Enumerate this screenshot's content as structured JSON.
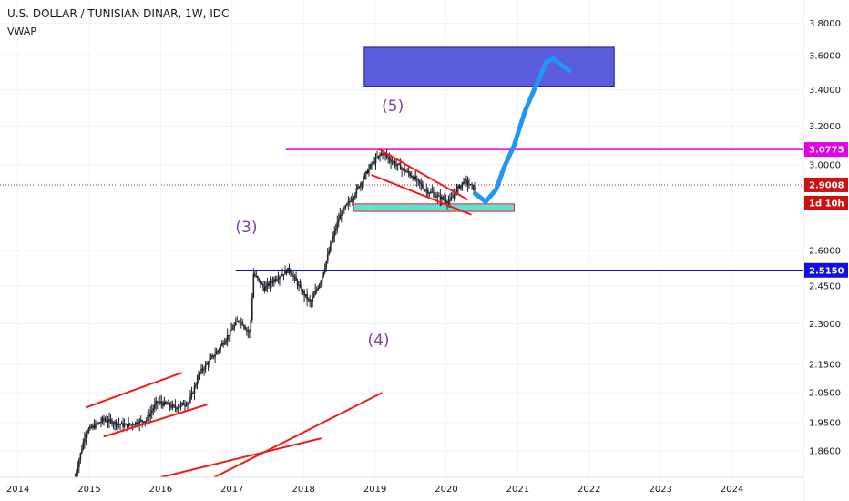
{
  "header": {
    "title": "U.S. DOLLAR / TUNISIAN DINAR, 1W, IDC",
    "indicator": "VWAP"
  },
  "colors": {
    "grid": "#f0f3fa",
    "axis_text": "#131722",
    "candle": "#1e222d",
    "projection": "#2196f3",
    "target_box_fill": "#3f3fd8",
    "support_box_fill": "#5ee2d6",
    "trendline": "#f41a1a",
    "resistance_line": "#e500e5",
    "support_line": "#1010e6",
    "current_price_line": "#d01010",
    "wave_label": "#7b3fa8"
  },
  "chart_data": {
    "type": "candlestick",
    "symbol": "U.S. DOLLAR / TUNISIAN DINAR",
    "interval": "1W",
    "source": "IDC",
    "x_tick_labels": [
      "2014",
      "2015",
      "2016",
      "2017",
      "2018",
      "2019",
      "2020",
      "2021",
      "2022",
      "2023",
      "2024"
    ],
    "y_tick_labels": [
      "3.8000",
      "3.6000",
      "3.4000",
      "3.2000",
      "3.0000",
      "2.6000",
      "2.4500",
      "2.3000",
      "2.1500",
      "2.0500",
      "1.9500",
      "1.8600"
    ],
    "xlim": [
      2013.75,
      2025.0
    ],
    "ylim": [
      1.78,
      3.95
    ],
    "price_path": [
      [
        2014.8,
        1.78
      ],
      [
        2014.95,
        1.92
      ],
      [
        2015.2,
        1.96
      ],
      [
        2015.5,
        1.94
      ],
      [
        2015.8,
        1.96
      ],
      [
        2015.95,
        2.02
      ],
      [
        2016.2,
        2.0
      ],
      [
        2016.4,
        2.02
      ],
      [
        2016.55,
        2.12
      ],
      [
        2016.8,
        2.2
      ],
      [
        2017.1,
        2.32
      ],
      [
        2017.25,
        2.26
      ],
      [
        2017.3,
        2.5
      ],
      [
        2017.45,
        2.44
      ],
      [
        2017.6,
        2.48
      ],
      [
        2017.8,
        2.52
      ],
      [
        2017.95,
        2.44
      ],
      [
        2018.1,
        2.38
      ],
      [
        2018.25,
        2.48
      ],
      [
        2018.5,
        2.75
      ],
      [
        2018.7,
        2.85
      ],
      [
        2018.95,
        3.0
      ],
      [
        2019.1,
        3.06
      ],
      [
        2019.3,
        3.0
      ],
      [
        2019.5,
        2.95
      ],
      [
        2019.7,
        2.88
      ],
      [
        2019.9,
        2.84
      ],
      [
        2020.05,
        2.82
      ],
      [
        2020.15,
        2.88
      ],
      [
        2020.25,
        2.92
      ],
      [
        2020.4,
        2.88
      ]
    ],
    "projection_path": [
      [
        2020.4,
        2.86
      ],
      [
        2020.55,
        2.82
      ],
      [
        2020.7,
        2.88
      ],
      [
        2020.8,
        2.98
      ],
      [
        2020.95,
        3.1
      ],
      [
        2021.1,
        3.28
      ],
      [
        2021.25,
        3.42
      ],
      [
        2021.4,
        3.56
      ],
      [
        2021.5,
        3.58
      ],
      [
        2021.62,
        3.54
      ],
      [
        2021.72,
        3.51
      ]
    ],
    "waves": [
      {
        "label": "(3)",
        "x": 2017.2,
        "y": 2.68
      },
      {
        "label": "(4)",
        "x": 2019.05,
        "y": 2.22
      },
      {
        "label": "(5)",
        "x": 2019.25,
        "y": 3.28
      }
    ],
    "horizontal_levels": [
      {
        "price": 3.0775,
        "label": "3.0775",
        "from_x": 2017.75
      },
      {
        "price": 2.515,
        "label": "2.5150",
        "from_x": 2017.05
      },
      {
        "price": 2.9008,
        "label": "2.9008",
        "from_x": 2013.75,
        "dotted": true
      }
    ],
    "countdown_label": "1d 10h",
    "zones": [
      {
        "name": "target",
        "x": [
          2018.85,
          2022.35
        ],
        "y": [
          3.42,
          3.65
        ]
      },
      {
        "name": "support",
        "x": [
          2018.7,
          2020.95
        ],
        "y": [
          2.775,
          2.81
        ]
      }
    ],
    "trendlines": [
      [
        [
          2019.05,
          3.08
        ],
        [
          2020.3,
          2.83
        ]
      ],
      [
        [
          2018.95,
          2.95
        ],
        [
          2020.35,
          2.76
        ]
      ],
      [
        [
          2014.95,
          2.0
        ],
        [
          2016.3,
          2.12
        ]
      ],
      [
        [
          2015.2,
          1.905
        ],
        [
          2016.65,
          2.01
        ]
      ],
      [
        [
          2016.0,
          1.78
        ],
        [
          2018.25,
          1.9
        ]
      ],
      [
        [
          2016.75,
          1.78
        ],
        [
          2019.1,
          2.05
        ]
      ]
    ]
  }
}
